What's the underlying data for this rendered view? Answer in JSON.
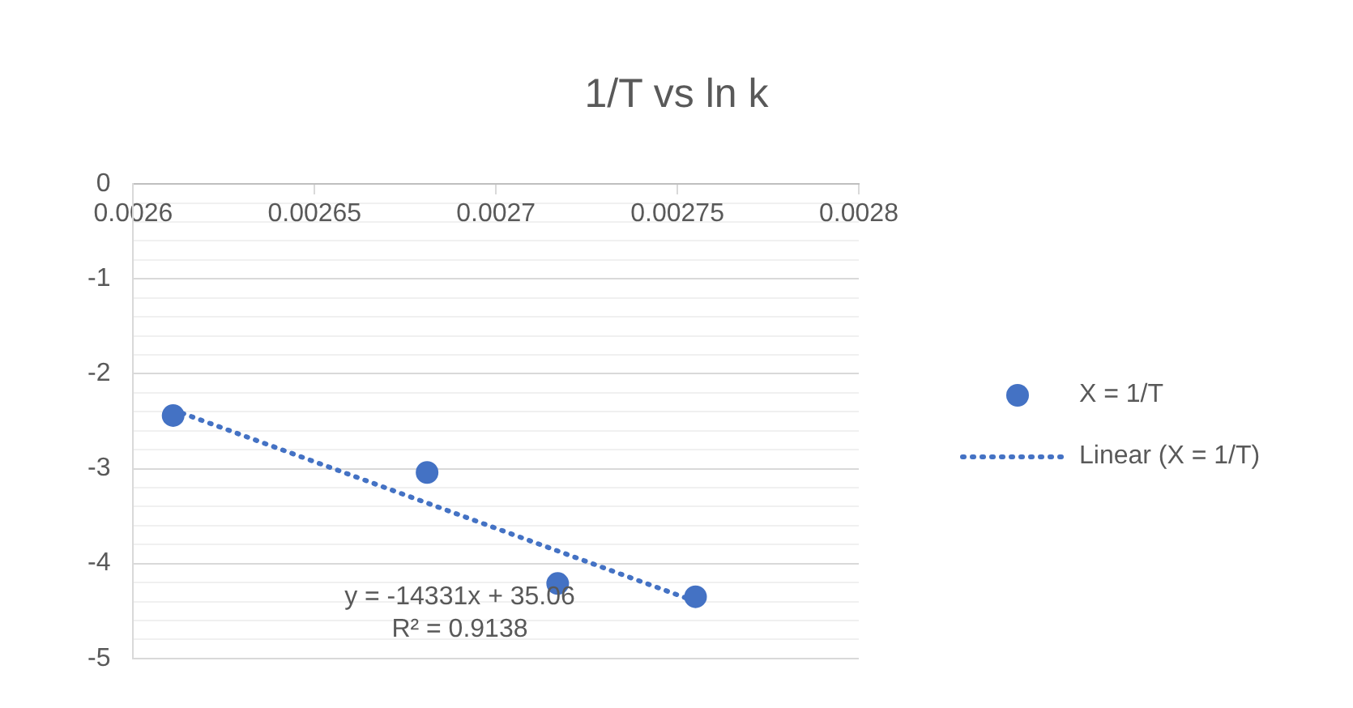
{
  "chart_data": {
    "type": "scatter",
    "title": "1/T vs ln k",
    "series": [
      {
        "name": "X = 1/T",
        "type": "scatter",
        "color": "#4472c4",
        "marker": "circle",
        "x": [
          0.002611,
          0.002681,
          0.002717,
          0.002755
        ],
        "values": [
          -2.44,
          -3.04,
          -4.21,
          -4.35
        ]
      },
      {
        "name": "Linear (X = 1/T)",
        "type": "line",
        "color": "#4472c4",
        "marker": "none",
        "line_style": "dotted",
        "x": [
          0.002611,
          0.002755
        ],
        "values": [
          -2.38,
          -4.4
        ]
      }
    ],
    "xlim": [
      0.0026,
      0.0028
    ],
    "xticks": [
      0.0026,
      0.00265,
      0.0027,
      0.00275,
      0.0028
    ],
    "ylim": [
      -5,
      0
    ],
    "yticks": [
      0,
      {
        "value": -0.2,
        "label": null
      },
      {
        "value": -0.4,
        "label": null
      },
      {
        "value": -0.6,
        "label": null
      },
      {
        "value": -0.8,
        "label": null
      },
      -1,
      {
        "value": -1.2,
        "label": null
      },
      {
        "value": -1.4,
        "label": null
      },
      {
        "value": -1.6,
        "label": null
      },
      {
        "value": -1.8,
        "label": null
      },
      -2,
      {
        "value": -2.2,
        "label": null
      },
      {
        "value": -2.4,
        "label": null
      },
      {
        "value": -2.6,
        "label": null
      },
      {
        "value": -2.8,
        "label": null
      },
      -3,
      {
        "value": -3.2,
        "label": null
      },
      {
        "value": -3.4,
        "label": null
      },
      {
        "value": -3.6,
        "label": null
      },
      {
        "value": -3.8,
        "label": null
      },
      -4,
      {
        "value": -4.2,
        "label": null
      },
      {
        "value": -4.4,
        "label": null
      },
      {
        "value": -4.6,
        "label": null
      },
      {
        "value": -4.8,
        "label": null
      },
      -5
    ],
    "grid": "y",
    "legend": "right",
    "annotations": [
      "y = -14331x + 35.06",
      "R² = 0.9138"
    ]
  }
}
